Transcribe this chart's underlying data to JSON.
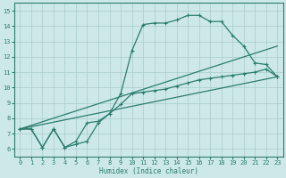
{
  "xlabel": "Humidex (Indice chaleur)",
  "xlim": [
    -0.5,
    23.5
  ],
  "ylim": [
    5.5,
    15.5
  ],
  "xticks": [
    0,
    1,
    2,
    3,
    4,
    5,
    6,
    7,
    8,
    9,
    10,
    11,
    12,
    13,
    14,
    15,
    16,
    17,
    18,
    19,
    20,
    21,
    22,
    23
  ],
  "yticks": [
    6,
    7,
    8,
    9,
    10,
    11,
    12,
    13,
    14,
    15
  ],
  "line_color": "#2a7d6e",
  "bg_color": "#cde8e8",
  "grid_color": "#a8cccc",
  "lines": [
    {
      "comment": "main spiky line: starts ~7.3, dips to 6.1 at x=2, back to 7.3 at x=3, dips 6.1 at x=4, climbs through 9.6 at x=9, jumps to 12.4 at x=10, 14.1 at x=11, plateau ~14.2-14.4 till x=14, peak 14.7 at x=15-16, then 14.3 x=17-18, drops to 13.4 x=19, 12.7 x=20, 11.6 x=21, 11.5 x=22, 10.7 x=23",
      "x": [
        0,
        1,
        2,
        3,
        4,
        5,
        6,
        7,
        8,
        9,
        10,
        11,
        12,
        13,
        14,
        15,
        16,
        17,
        18,
        19,
        20,
        21,
        22,
        23
      ],
      "y": [
        7.3,
        7.3,
        6.1,
        7.3,
        6.1,
        6.3,
        6.5,
        7.7,
        8.3,
        9.6,
        12.4,
        14.1,
        14.2,
        14.2,
        14.4,
        14.7,
        14.7,
        14.3,
        14.3,
        13.4,
        12.7,
        11.6,
        11.5,
        10.7
      ]
    },
    {
      "x": [
        0,
        23
      ],
      "y": [
        7.3,
        12.7
      ]
    },
    {
      "x": [
        0,
        23
      ],
      "y": [
        7.3,
        10.7
      ]
    },
    {
      "x": [
        0,
        1,
        2,
        3,
        4,
        5,
        6,
        7,
        8,
        9,
        10,
        11,
        12,
        13,
        14,
        15,
        16,
        17,
        18,
        19,
        20,
        21,
        22,
        23
      ],
      "y": [
        7.3,
        7.3,
        6.1,
        7.3,
        6.1,
        6.5,
        7.7,
        7.8,
        8.3,
        8.9,
        9.6,
        9.7,
        9.8,
        9.9,
        10.1,
        10.3,
        10.5,
        10.6,
        10.7,
        10.8,
        10.9,
        11.0,
        11.2,
        10.7
      ]
    }
  ]
}
